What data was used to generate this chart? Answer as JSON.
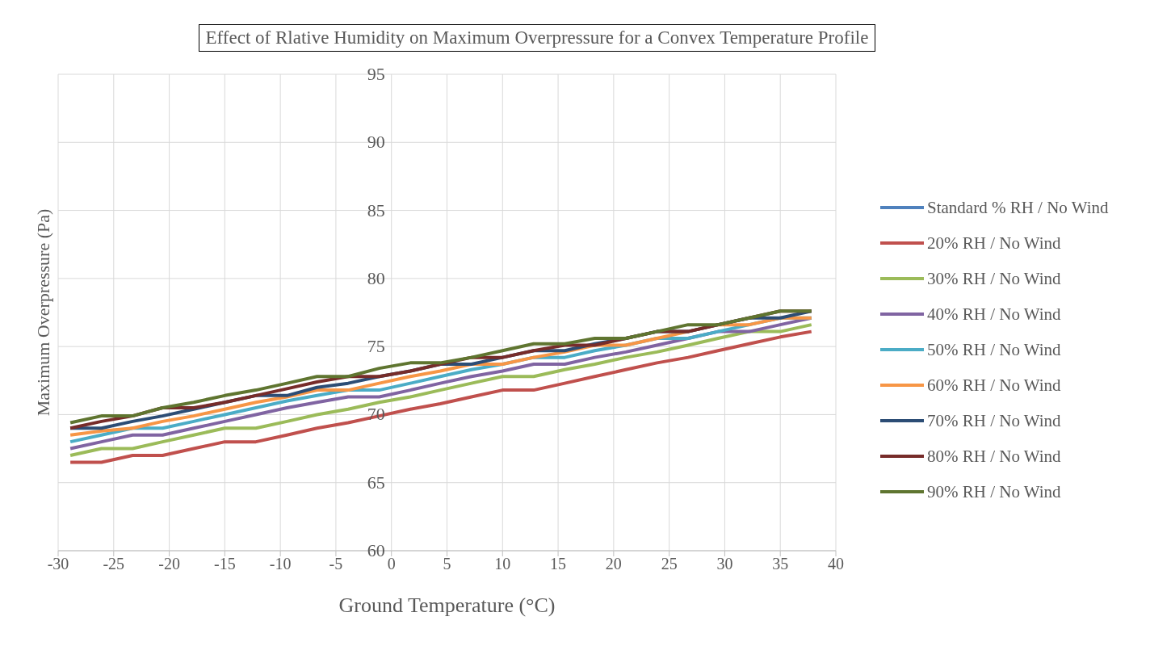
{
  "chart_data": {
    "type": "line",
    "title": "Effect of Rlative Humidity on Maximum Overpressure for a Convex Temperature Profile",
    "xlabel": "Ground Temperature (°C)",
    "ylabel": "Maximum Overpressure (Pa)",
    "x": [
      -28.9,
      -26.1,
      -23.3,
      -20.6,
      -17.8,
      -15,
      -12.2,
      -9.4,
      -6.7,
      -3.9,
      -1.1,
      1.7,
      4.4,
      7.2,
      10,
      12.8,
      15.6,
      18.3,
      21.1,
      23.9,
      26.7,
      29.4,
      32.2,
      35,
      37.8
    ],
    "xlim": [
      -30,
      40
    ],
    "xticks": [
      -30,
      -25,
      -20,
      -15,
      -10,
      -5,
      0,
      5,
      10,
      15,
      20,
      25,
      30,
      35,
      40
    ],
    "ylim": [
      60,
      95
    ],
    "yticks": [
      60,
      65,
      70,
      75,
      80,
      85,
      90,
      95
    ],
    "grid": true,
    "legend": "right",
    "marker": "none",
    "line_style": "solid",
    "series": [
      {
        "name": "Standard % RH / No Wind",
        "color": "#4f81bd",
        "values": [
          null,
          null,
          null,
          null,
          null,
          null,
          null,
          null,
          null,
          null,
          null,
          null,
          null,
          null,
          null,
          null,
          null,
          null,
          null,
          null,
          null,
          null,
          null,
          null,
          null
        ]
      },
      {
        "name": "20% RH / No Wind",
        "color": "#c0504d",
        "values": [
          66.5,
          66.5,
          67,
          67,
          67.5,
          68,
          68,
          68.5,
          69,
          69.4,
          69.9,
          70.4,
          70.8,
          71.3,
          71.8,
          71.8,
          72.3,
          72.8,
          73.3,
          73.8,
          74.2,
          74.7,
          75.2,
          75.7,
          76.1
        ]
      },
      {
        "name": "30% RH / No Wind",
        "color": "#9bbb59",
        "values": [
          67,
          67.5,
          67.5,
          68,
          68.5,
          69,
          69,
          69.5,
          70,
          70.4,
          70.9,
          71.3,
          71.8,
          72.3,
          72.8,
          72.8,
          73.3,
          73.7,
          74.2,
          74.6,
          75.1,
          75.6,
          76.1,
          76.1,
          76.6
        ]
      },
      {
        "name": "40% RH / No Wind",
        "color": "#8064a2",
        "values": [
          67.5,
          68,
          68.5,
          68.5,
          69,
          69.5,
          70,
          70.5,
          70.9,
          71.3,
          71.3,
          71.8,
          72.3,
          72.8,
          73.2,
          73.7,
          73.7,
          74.2,
          74.6,
          75.1,
          75.6,
          76.1,
          76.1,
          76.6,
          77.1
        ]
      },
      {
        "name": "50% RH / No Wind",
        "color": "#4bacc6",
        "values": [
          68,
          68.5,
          69,
          69,
          69.5,
          70,
          70.5,
          71,
          71.4,
          71.8,
          71.8,
          72.3,
          72.8,
          73.3,
          73.7,
          74.2,
          74.2,
          74.7,
          75.1,
          75.6,
          75.6,
          76.1,
          76.6,
          77.1,
          77.1
        ]
      },
      {
        "name": "60% RH / No Wind",
        "color": "#f79646",
        "values": [
          68.5,
          68.8,
          69,
          69.5,
          69.9,
          70.4,
          70.9,
          71.3,
          71.8,
          71.8,
          72.3,
          72.8,
          73.2,
          73.7,
          73.7,
          74.2,
          74.6,
          75.1,
          75.1,
          75.6,
          76.1,
          76.6,
          76.6,
          77.1,
          77.1
        ]
      },
      {
        "name": "70% RH / No Wind",
        "color": "#2c4d75",
        "values": [
          69,
          69,
          69.5,
          69.9,
          70.4,
          70.9,
          71.4,
          71.4,
          72,
          72.3,
          72.8,
          73.2,
          73.7,
          73.7,
          74.2,
          74.7,
          74.7,
          75.2,
          75.6,
          76.1,
          76.1,
          76.6,
          77.1,
          77.1,
          77.6
        ]
      },
      {
        "name": "80% RH / No Wind",
        "color": "#772c2a",
        "values": [
          69,
          69.5,
          69.9,
          70.5,
          70.5,
          70.9,
          71.4,
          71.9,
          72.4,
          72.8,
          72.8,
          73.2,
          73.7,
          74.2,
          74.2,
          74.7,
          75.1,
          75.1,
          75.6,
          76.1,
          76.1,
          76.6,
          77.1,
          77.6,
          77.6
        ]
      },
      {
        "name": "90% RH / No Wind",
        "color": "#5f7530",
        "values": [
          69.4,
          69.9,
          69.9,
          70.5,
          70.9,
          71.4,
          71.8,
          72.3,
          72.8,
          72.8,
          73.4,
          73.8,
          73.8,
          74.2,
          74.7,
          75.2,
          75.2,
          75.6,
          75.6,
          76.1,
          76.6,
          76.6,
          77.1,
          77.6,
          77.6
        ]
      }
    ]
  }
}
